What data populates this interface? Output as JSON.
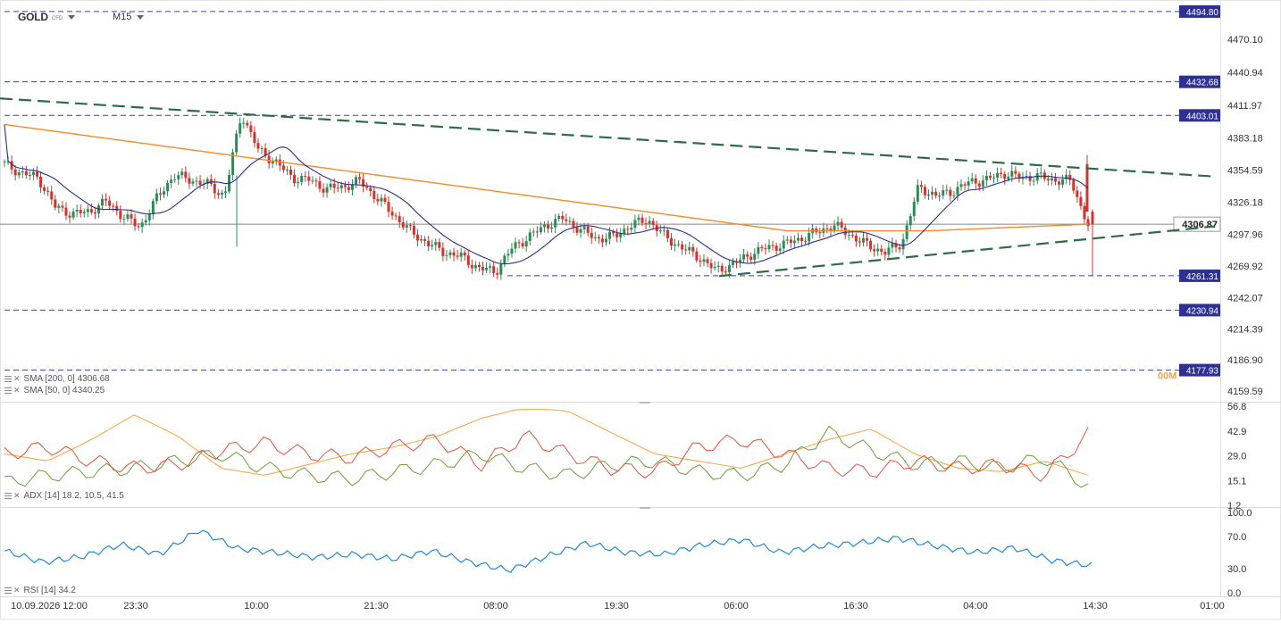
{
  "header": {
    "symbol": "GOLD",
    "symbol_type": "CFD",
    "timeframe": "M15"
  },
  "colors": {
    "candle_up": "#2e8b57",
    "candle_down": "#d0342c",
    "sma50": "#2b2d8f",
    "sma200": "#f28c28",
    "hline": "#3a3fa6",
    "trend": "#2d6b4a",
    "adx_green": "#6e9a3a",
    "adx_red": "#e0523e",
    "adx_orange": "#f3a33c",
    "rsi": "#2388d8",
    "price_tag": "#2e3192",
    "current_tag": "#6b6b6b"
  },
  "price_axis": {
    "ticks": [
      "4470.10",
      "4440.94",
      "4411.97",
      "4383.18",
      "4354.59",
      "4326.18",
      "4297.96",
      "4269.92",
      "4242.07",
      "4214.39",
      "4186.90",
      "4159.59"
    ]
  },
  "price_levels": [
    {
      "label": "4494.80",
      "value": 4494.8
    },
    {
      "label": "4432.68",
      "value": 4432.68
    },
    {
      "label": "4403.01",
      "value": 4403.01
    },
    {
      "label": "4261.31",
      "value": 4261.31
    },
    {
      "label": "4230.94",
      "value": 4230.94
    },
    {
      "label": "4177.93",
      "value": 4177.93
    }
  ],
  "current_price": {
    "label": "4306.87",
    "value": 4306.87,
    "countdown": "00M"
  },
  "time_axis": [
    "10.09.2026 12:00",
    "23:30",
    "10:00",
    "21:30",
    "08:00",
    "19:30",
    "06:00",
    "16:30",
    "04:00",
    "14:30",
    "01:00"
  ],
  "indicators": {
    "sma200": "SMA [200, 0] 4306.68",
    "sma50": "SMA [50, 0] 4340.25",
    "adx": "ADX [14] 18.2, 10.5, 41.5",
    "rsi": "RSI [14] 34.2"
  },
  "adx_axis": [
    "56.8",
    "42.9",
    "29.0",
    "15.1",
    "1.2"
  ],
  "rsi_axis": [
    "100.0",
    "70.0",
    "30.0",
    "0.0"
  ],
  "chart_data": [
    {
      "type": "candlestick",
      "title": "GOLD M15",
      "ylim": [
        4150,
        4505
      ],
      "x": [
        "10.09.2026 12:00",
        "23:30",
        "10:00",
        "21:30",
        "08:00",
        "19:30",
        "06:00",
        "16:30",
        "04:00",
        "14:30"
      ],
      "close_path": [
        4360,
        4352,
        4348,
        4322,
        4316,
        4318,
        4327,
        4314,
        4304,
        4330,
        4350,
        4346,
        4342,
        4332,
        4405,
        4372,
        4362,
        4348,
        4346,
        4338,
        4340,
        4345,
        4330,
        4315,
        4300,
        4290,
        4282,
        4278,
        4268,
        4265,
        4286,
        4296,
        4306,
        4312,
        4302,
        4294,
        4296,
        4306,
        4311,
        4296,
        4286,
        4278,
        4266,
        4271,
        4280,
        4286,
        4289,
        4294,
        4300,
        4306,
        4297,
        4288,
        4282,
        4290,
        4340,
        4332,
        4336,
        4344,
        4346,
        4352,
        4348,
        4349,
        4346,
        4345,
        4306
      ],
      "series": [
        {
          "name": "SMA [200, 0]",
          "value": 4306.68
        },
        {
          "name": "SMA [50, 0]",
          "value": 4340.25
        }
      ],
      "trendlines": [
        {
          "from": 4418,
          "to": 4349
        },
        {
          "from": 4261,
          "to": 4305
        }
      ],
      "horizontal_levels": [
        4494.8,
        4432.68,
        4403.01,
        4261.31,
        4230.94,
        4177.93
      ],
      "last_price": 4306.87
    },
    {
      "type": "line",
      "title": "ADX [14] 18.2, 10.5, 41.5",
      "ylim": [
        1.2,
        56.8
      ],
      "series": [
        {
          "name": "ADX",
          "values": [
            30,
            26,
            38,
            52,
            40,
            22,
            18,
            24,
            30,
            34,
            40,
            50,
            56,
            54,
            42,
            30,
            26,
            22,
            30,
            38,
            44,
            30,
            22,
            20,
            26,
            18
          ]
        },
        {
          "name": "+DI",
          "values": [
            14,
            18,
            20,
            22,
            26,
            30,
            22,
            18,
            16,
            20,
            24,
            30,
            22,
            18,
            24,
            26,
            20,
            18,
            24,
            42,
            32,
            24,
            26,
            22,
            28,
            12
          ]
        },
        {
          "name": "-DI",
          "values": [
            30,
            34,
            26,
            22,
            24,
            32,
            36,
            30,
            28,
            34,
            38,
            24,
            40,
            30,
            22,
            20,
            34,
            38,
            30,
            22,
            20,
            26,
            22,
            24,
            18,
            41
          ]
        }
      ],
      "last_values": [
        18.2,
        10.5,
        41.5
      ]
    },
    {
      "type": "line",
      "title": "RSI [14] 34.2",
      "ylim": [
        0,
        100
      ],
      "series": [
        {
          "name": "RSI",
          "values": [
            52,
            38,
            45,
            60,
            48,
            78,
            55,
            50,
            44,
            48,
            42,
            52,
            38,
            28,
            46,
            62,
            50,
            48,
            60,
            66,
            50,
            58,
            62,
            68,
            58,
            50,
            56,
            40,
            34
          ]
        }
      ],
      "last_value": 34.2
    }
  ]
}
